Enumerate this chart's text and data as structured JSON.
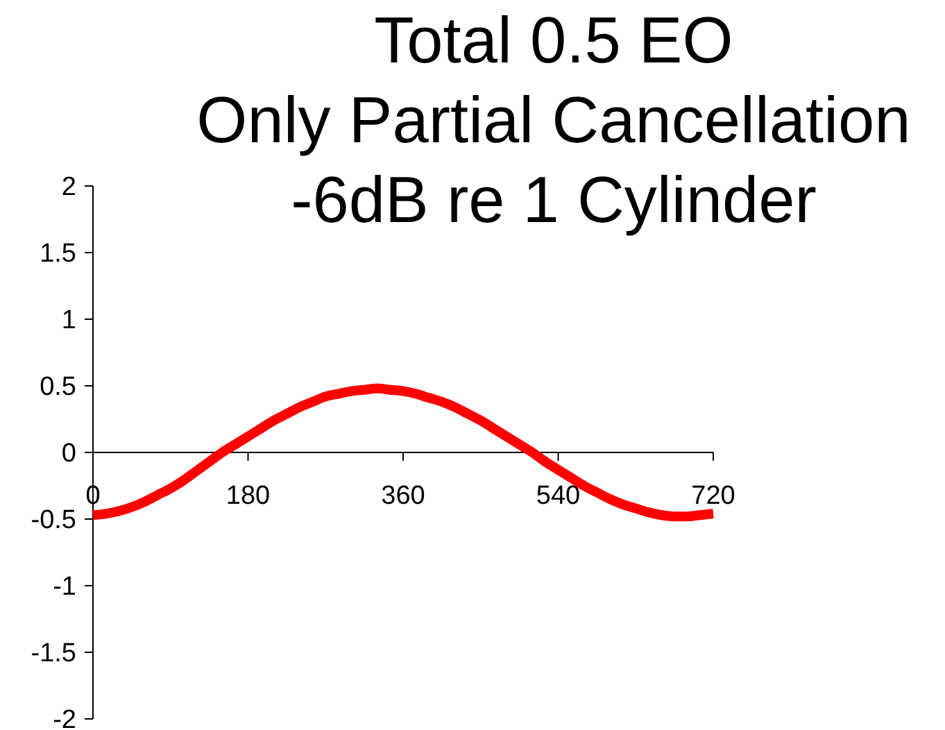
{
  "chart_data": {
    "type": "line",
    "title": "Total 0.5 EO\nOnly Partial Cancellation\n-6dB re 1 Cylinder",
    "x": [
      0,
      15,
      30,
      45,
      60,
      75,
      90,
      105,
      120,
      135,
      150,
      165,
      180,
      195,
      210,
      225,
      240,
      255,
      270,
      285,
      300,
      315,
      330,
      345,
      360,
      375,
      390,
      405,
      420,
      435,
      450,
      465,
      480,
      495,
      510,
      525,
      540,
      555,
      570,
      585,
      600,
      615,
      630,
      645,
      660,
      675,
      690,
      705,
      720
    ],
    "series": [
      {
        "color": "#ff0000",
        "values": [
          -0.47,
          -0.46,
          -0.44,
          -0.41,
          -0.37,
          -0.32,
          -0.27,
          -0.21,
          -0.14,
          -0.07,
          0.0,
          0.06,
          0.12,
          0.18,
          0.24,
          0.29,
          0.34,
          0.38,
          0.42,
          0.44,
          0.46,
          0.47,
          0.48,
          0.47,
          0.46,
          0.44,
          0.41,
          0.38,
          0.34,
          0.29,
          0.24,
          0.18,
          0.12,
          0.06,
          0.0,
          -0.07,
          -0.13,
          -0.19,
          -0.25,
          -0.3,
          -0.35,
          -0.39,
          -0.42,
          -0.45,
          -0.47,
          -0.48,
          -0.48,
          -0.47,
          -0.46
        ]
      }
    ],
    "xlim": [
      0,
      720
    ],
    "xticks": [
      0,
      180,
      360,
      540,
      720
    ],
    "ylim": [
      -2,
      2
    ],
    "yticks": [
      -2,
      -1.5,
      -1,
      -0.5,
      0,
      0.5,
      1,
      1.5,
      2
    ]
  }
}
